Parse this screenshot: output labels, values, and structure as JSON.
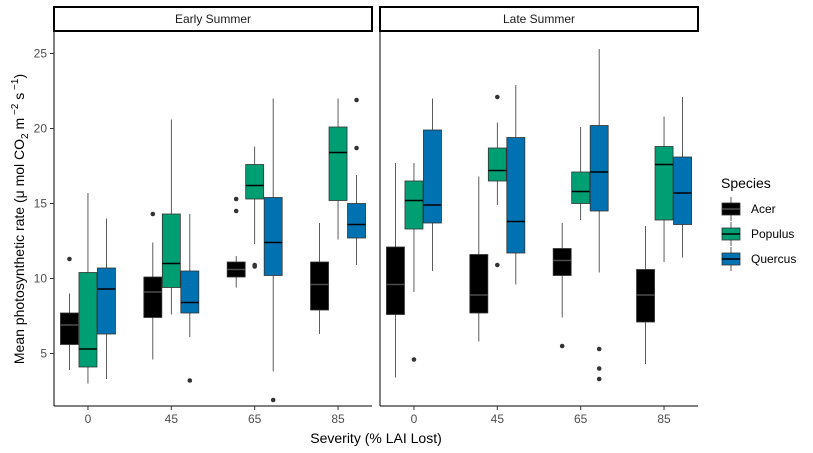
{
  "chart_data": {
    "type": "boxplot",
    "xlabel": "Severity (% LAI Lost)",
    "ylabel": {
      "prefix": "Mean photosynthetic rate (",
      "mu": "μ",
      "mid1": " mol CO",
      "sub2": "2",
      "mid2": " m",
      "sup1": " −2",
      "mid3": " s",
      "sup2": " −1",
      "suffix": ")"
    },
    "ylim": [
      1.5,
      26.5
    ],
    "yticks": [
      5,
      10,
      15,
      20,
      25
    ],
    "categories": [
      "0",
      "45",
      "65",
      "85"
    ],
    "legend": {
      "title": "Species",
      "position": "right"
    },
    "series": [
      {
        "name": "Acer",
        "color": "#000000",
        "median_color": "#4d4d4d"
      },
      {
        "name": "Populus",
        "color": "#009e73",
        "median_color": "#000000"
      },
      {
        "name": "Quercus",
        "color": "#0072b2",
        "median_color": "#000000"
      }
    ],
    "panels": [
      {
        "title": "Early Summer",
        "boxes": [
          [
            {
              "wlo": 3.9,
              "q1": 5.6,
              "med": 6.9,
              "q3": 7.7,
              "whi": 9.0,
              "out": [
                11.3
              ]
            },
            {
              "wlo": 3.0,
              "q1": 4.1,
              "med": 5.3,
              "q3": 10.4,
              "whi": 15.7,
              "out": []
            },
            {
              "wlo": 3.3,
              "q1": 6.3,
              "med": 9.3,
              "q3": 10.7,
              "whi": 14.0,
              "out": []
            }
          ],
          [
            {
              "wlo": 4.6,
              "q1": 7.4,
              "med": 9.1,
              "q3": 10.1,
              "whi": 12.4,
              "out": [
                14.3
              ]
            },
            {
              "wlo": 7.6,
              "q1": 9.4,
              "med": 11.0,
              "q3": 14.3,
              "whi": 20.6,
              "out": []
            },
            {
              "wlo": 6.1,
              "q1": 7.7,
              "med": 8.4,
              "q3": 10.5,
              "whi": 14.3,
              "out": [
                3.2
              ]
            }
          ],
          [
            {
              "wlo": 9.4,
              "q1": 10.1,
              "med": 10.6,
              "q3": 11.1,
              "whi": 11.5,
              "out": [
                14.5,
                15.3
              ]
            },
            {
              "wlo": 12.3,
              "q1": 15.3,
              "med": 16.2,
              "q3": 17.6,
              "whi": 18.8,
              "out": [
                10.8,
                10.9
              ]
            },
            {
              "wlo": 3.8,
              "q1": 10.2,
              "med": 12.4,
              "q3": 15.4,
              "whi": 22.0,
              "out": [
                1.9
              ]
            }
          ],
          [
            {
              "wlo": 6.3,
              "q1": 7.9,
              "med": 9.6,
              "q3": 11.1,
              "whi": 13.7,
              "out": []
            },
            {
              "wlo": 12.6,
              "q1": 15.2,
              "med": 18.4,
              "q3": 20.1,
              "whi": 22.0,
              "out": []
            },
            {
              "wlo": 10.9,
              "q1": 12.7,
              "med": 13.6,
              "q3": 15.0,
              "whi": 16.9,
              "out": [
                18.7,
                21.9
              ]
            }
          ]
        ]
      },
      {
        "title": "Late Summer",
        "boxes": [
          [
            {
              "wlo": 3.4,
              "q1": 7.6,
              "med": 9.6,
              "q3": 12.1,
              "whi": 17.7,
              "out": []
            },
            {
              "wlo": 9.1,
              "q1": 13.3,
              "med": 15.2,
              "q3": 16.5,
              "whi": 17.7,
              "out": [
                4.6
              ]
            },
            {
              "wlo": 10.5,
              "q1": 13.7,
              "med": 14.9,
              "q3": 19.9,
              "whi": 22.0,
              "out": []
            }
          ],
          [
            {
              "wlo": 5.8,
              "q1": 7.7,
              "med": 8.9,
              "q3": 11.6,
              "whi": 16.8,
              "out": []
            },
            {
              "wlo": 14.9,
              "q1": 16.5,
              "med": 17.2,
              "q3": 18.7,
              "whi": 20.4,
              "out": [
                10.9,
                22.1
              ]
            },
            {
              "wlo": 9.6,
              "q1": 11.7,
              "med": 13.8,
              "q3": 19.4,
              "whi": 22.9,
              "out": []
            }
          ],
          [
            {
              "wlo": 7.4,
              "q1": 10.2,
              "med": 11.2,
              "q3": 12.0,
              "whi": 13.7,
              "out": [
                5.5
              ]
            },
            {
              "wlo": 13.9,
              "q1": 15.0,
              "med": 15.8,
              "q3": 17.1,
              "whi": 20.1,
              "out": []
            },
            {
              "wlo": 10.4,
              "q1": 14.5,
              "med": 17.1,
              "q3": 20.2,
              "whi": 25.3,
              "out": [
                3.3,
                4.0,
                5.3
              ]
            }
          ],
          [
            {
              "wlo": 4.3,
              "q1": 7.1,
              "med": 8.9,
              "q3": 10.6,
              "whi": 13.5,
              "out": []
            },
            {
              "wlo": 11.1,
              "q1": 13.9,
              "med": 17.6,
              "q3": 18.8,
              "whi": 20.8,
              "out": []
            },
            {
              "wlo": 11.4,
              "q1": 13.6,
              "med": 15.7,
              "q3": 18.1,
              "whi": 22.1,
              "out": []
            }
          ]
        ]
      }
    ]
  }
}
